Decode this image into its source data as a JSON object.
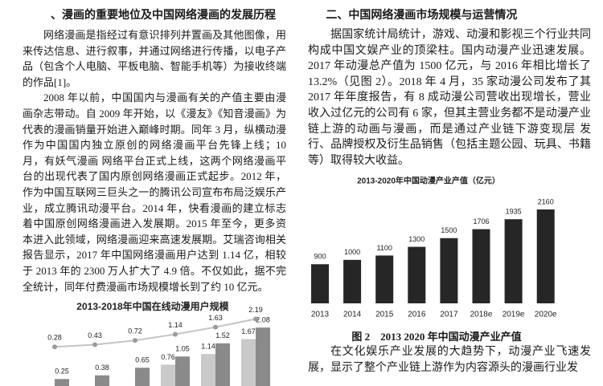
{
  "left_column": {
    "heading": "、漫画的重要地位及中国网络漫画的发展历程",
    "paragraphs": [
      "网络漫画是指经过有意识排列并置画及其他图像，用来传达信息、进行叙事，并通过网络进行传播，以电子产品（包含个人电脑、平板电脑、智能手机等）为接收终端的作品[1]。",
      "2008 年以前，中国国内与漫画有关的产值主要由漫画杂志带动。自 2009 年开始，以《漫友》《知音漫画》为代表的漫画销量开始进入巅峰时期。同年 3 月，纵横动漫 作为中国国内独立原创的网络漫画平台先锋上线；10 月，有妖气漫画 网络平台正式上线，这两个网络漫画平台的出现代表了国内原创网络漫画正式起步。2012 年，作为中国互联网三巨头之一的腾讯公司宣布布局泛娱乐产业，成立腾讯动漫平台。2014 年，快看漫画的建立标志着中国原创网络漫画进入发展期。2015 年至今，更多资本进入此领域，网络漫画迎来高速发展期。艾瑞咨询相关报告显示，2017 年中国网络漫画用户达到 1.14 亿，相较于 2013 年的 2300 万人扩大了 4.9 倍。不仅如此，据不完全统计，同年付费漫画市场规模增长到了约 10 亿元。"
    ]
  },
  "right_column": {
    "heading": "二、中国网络漫画市场规模与运营情况",
    "paragraphs": [
      "据国家统计局统计，游戏、动漫和影视三个行业共同构成中国文娱产业的顶梁柱。国内动漫产业迅速发展。2017 年动漫总产值为 1500 亿元，与 2016 年相比增长了 13.2%（见图 2）。2018 年 4 月，35 家动漫公司发布了其 2017 年年度报告，有 8 成动漫公司营收出现增长，营业收入过亿元的公司有 6 家，但其主营业务都不是动漫产业链上游的动画与漫画，而是通过产业链下游变现层 发行、品牌授权及衍生品销售（包括主题公园、玩具、书籍等）取得较大收益。"
    ],
    "figure_caption": "图 2　2013 2020 年中国动漫产业产值",
    "paragraphs_after": [
      "在文化娱乐产业发展的大趋势下，动漫产业飞速发展，显示了整个产业链上游作为内容源头的漫画行业发"
    ]
  },
  "chart_data": [
    {
      "type": "combo",
      "title": "2013-2018年中国在线动漫用户规模",
      "categories": [
        null,
        null,
        null,
        null,
        null,
        null
      ],
      "ylim": [
        0,
        2.6
      ],
      "y2lim": [
        -2.4,
        2.6
      ],
      "series": [
        {
          "type": "bar",
          "color": "#c9c9c9",
          "values": [
            null,
            null,
            null,
            0.76,
            1.14,
            1.67
          ]
        },
        {
          "type": "bar",
          "color": "#8a8a8a",
          "values": [
            0.25,
            0.38,
            0.65,
            1.05,
            1.52,
            2.08
          ]
        },
        {
          "type": "line",
          "axis": "y2",
          "color": "#c4c4c4",
          "values": [
            0.28,
            0.43,
            0.72,
            1.14,
            1.63,
            2.19
          ]
        }
      ]
    },
    {
      "type": "bar",
      "title": "2013-2020年中国动漫产业产值（亿元）",
      "categories": [
        "2013",
        "2014",
        "2015",
        "2016",
        "2017",
        "2018e",
        "2019e",
        "2020e"
      ],
      "values": [
        900,
        1000,
        1100,
        1300,
        1500,
        1706,
        1935,
        2160
      ],
      "color": "#262626",
      "ylim": [
        0,
        2400
      ]
    }
  ]
}
